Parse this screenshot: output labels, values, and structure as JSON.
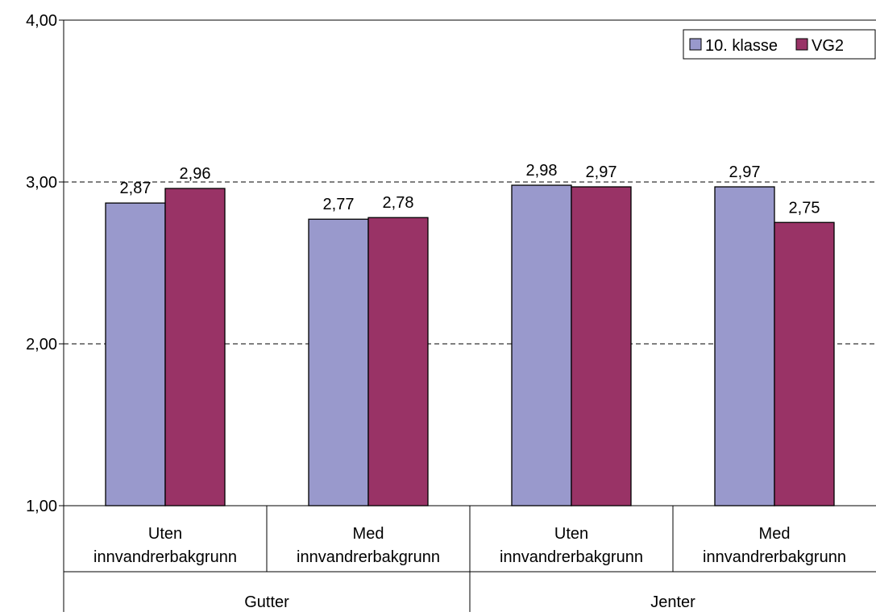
{
  "chart_data": {
    "type": "bar",
    "groups": [
      {
        "label": "Gutter",
        "categories": [
          "Uten innvandrerbakgrunn",
          "Med innvandrerbakgrunn"
        ]
      },
      {
        "label": "Jenter",
        "categories": [
          "Uten innvandrerbakgrunn",
          "Med innvandrerbakgrunn"
        ]
      }
    ],
    "categories": [
      [
        "Uten",
        "innvandrerbakgrunn"
      ],
      [
        "Med",
        "innvandrerbakgrunn"
      ],
      [
        "Uten",
        "innvandrerbakgrunn"
      ],
      [
        "Med",
        "innvandrerbakgrunn"
      ]
    ],
    "series": [
      {
        "name": "10. klasse",
        "color": "#9999cc",
        "values": [
          2.87,
          2.77,
          2.98,
          2.97
        ],
        "labels": [
          "2,87",
          "2,77",
          "2,98",
          "2,97"
        ]
      },
      {
        "name": "VG2",
        "color": "#993366",
        "values": [
          2.96,
          2.78,
          2.97,
          2.75
        ],
        "labels": [
          "2,96",
          "2,78",
          "2,97",
          "2,75"
        ]
      }
    ],
    "ylim": [
      1,
      4
    ],
    "yticks": [
      1,
      2,
      3,
      4
    ],
    "ytick_labels": [
      "1,00",
      "2,00",
      "3,00",
      "4,00"
    ],
    "grid": "dashed-horizontal",
    "legend_position": "top-right",
    "title": "",
    "xlabel": "",
    "ylabel": ""
  }
}
